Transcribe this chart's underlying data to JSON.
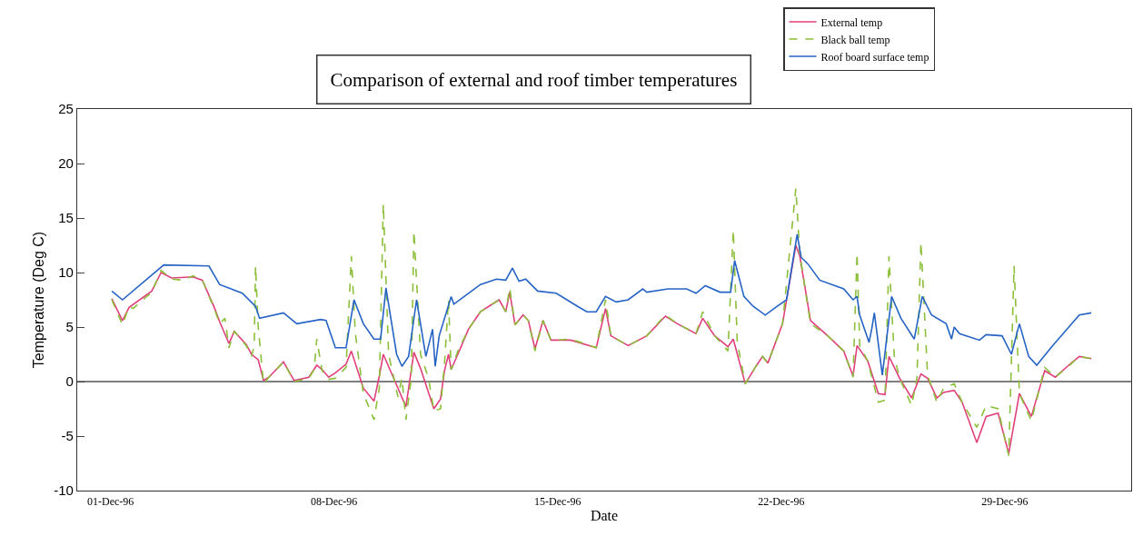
{
  "chart_data": {
    "type": "line",
    "title": "Comparison of external and roof timber temperatures",
    "xlabel": "Date",
    "ylabel": "Temperature (Deg C)",
    "xlim": [
      "1996-11-29T23:00",
      "1997-01-01T23:00"
    ],
    "xticks": [
      {
        "value": "1996-12-01T00:00",
        "label": "01-Dec-96"
      },
      {
        "value": "1996-12-08T00:00",
        "label": "08-Dec-96"
      },
      {
        "value": "1996-12-15T00:00",
        "label": "15-Dec-96"
      },
      {
        "value": "1996-12-22T00:00",
        "label": "22-Dec-96"
      },
      {
        "value": "1996-12-29T00:00",
        "label": "29-Dec-96"
      }
    ],
    "ylim": [
      -10,
      25
    ],
    "yticks": [
      -10,
      -5,
      0,
      5,
      10,
      15,
      20,
      25
    ],
    "grid": false,
    "legend": "top right",
    "marker": "none",
    "ref_lines": [
      {
        "axis": "y",
        "value": 0,
        "color": "#000000",
        "line_style": "solid"
      }
    ],
    "series": [
      {
        "name": "External temp",
        "color": "#e0407a",
        "line_style": "solid",
        "x": [
          "1996-12-01T01:00",
          "1996-12-01T09:00",
          "1996-12-01T14:00",
          "1996-12-02T07:00",
          "1996-12-02T14:00",
          "1996-12-02T22:00",
          "1996-12-03T14:00",
          "1996-12-03T21:00",
          "1996-12-04T06:00",
          "1996-12-04T10:00",
          "1996-12-04T17:00",
          "1996-12-04T21:00",
          "1996-12-05T06:00",
          "1996-12-05T10:00",
          "1996-12-05T15:00",
          "1996-12-05T19:00",
          "1996-12-05T23:00",
          "1996-12-06T10:00",
          "1996-12-06T18:00",
          "1996-12-07T05:00",
          "1996-12-07T11:00",
          "1996-12-07T15:00",
          "1996-12-07T20:00",
          "1996-12-08T01:00",
          "1996-12-08T09:00",
          "1996-12-08T13:00",
          "1996-12-08T22:00",
          "1996-12-09T06:00",
          "1996-12-09T10:00",
          "1996-12-09T13:00",
          "1996-12-10T00:00",
          "1996-12-10T06:00",
          "1996-12-10T12:00",
          "1996-12-10T17:00",
          "1996-12-11T03:00",
          "1996-12-11T08:00",
          "1996-12-11T11:00",
          "1996-12-11T14:00",
          "1996-12-11T16:00",
          "1996-12-11T21:00",
          "1996-12-12T05:00",
          "1996-12-12T14:00",
          "1996-12-13T04:00",
          "1996-12-13T09:00",
          "1996-12-13T12:00",
          "1996-12-13T16:00",
          "1996-12-13T22:00",
          "1996-12-14T02:00",
          "1996-12-14T07:00",
          "1996-12-14T13:00",
          "1996-12-14T19:00",
          "1996-12-15T10:00",
          "1996-12-16T05:00",
          "1996-12-16T12:00",
          "1996-12-16T16:00",
          "1996-12-17T05:00",
          "1996-12-17T19:00",
          "1996-12-18T09:00",
          "1996-12-18T18:00",
          "1996-12-19T08:00",
          "1996-12-19T13:00",
          "1996-12-19T22:00",
          "1996-12-20T08:00",
          "1996-12-20T12:00",
          "1996-12-20T21:00",
          "1996-12-21T05:00",
          "1996-12-21T10:00",
          "1996-12-21T14:00",
          "1996-12-22T01:00",
          "1996-12-22T11:00",
          "1996-12-22T14:00",
          "1996-12-22T22:00",
          "1996-12-23T11:00",
          "1996-12-23T23:00",
          "1996-12-24T06:00",
          "1996-12-24T09:00",
          "1996-12-24T17:00",
          "1996-12-25T01:00",
          "1996-12-25T06:00",
          "1996-12-25T09:00",
          "1996-12-25T17:00",
          "1996-12-26T02:00",
          "1996-12-26T09:00",
          "1996-12-26T14:00",
          "1996-12-26T21:00",
          "1996-12-27T02:00",
          "1996-12-27T10:00",
          "1996-12-27T16:00",
          "1996-12-28T03:00",
          "1996-12-28T10:00",
          "1996-12-28T19:00",
          "1996-12-29T03:00",
          "1996-12-29T11:00",
          "1996-12-29T20:00",
          "1996-12-30T06:00",
          "1996-12-30T14:00",
          "1996-12-31T00:00",
          "1996-12-31T08:00",
          "1996-12-31T17:00"
        ],
        "values": [
          7.6,
          5.6,
          6.8,
          8.3,
          10.0,
          9.5,
          9.6,
          9.3,
          6.8,
          5.5,
          3.5,
          4.6,
          3.4,
          2.5,
          2.0,
          0.1,
          0.4,
          1.8,
          0.1,
          0.4,
          1.5,
          1.1,
          0.4,
          0.8,
          1.6,
          2.8,
          -0.6,
          -1.8,
          0.5,
          2.5,
          -0.6,
          -2.3,
          2.7,
          1.2,
          -2.5,
          -1.6,
          1.0,
          2.5,
          1.1,
          2.5,
          4.8,
          6.4,
          7.5,
          6.4,
          8.2,
          5.2,
          6.1,
          5.6,
          3.0,
          5.6,
          3.8,
          3.8,
          3.1,
          6.7,
          4.2,
          3.3,
          4.2,
          6.0,
          5.3,
          4.4,
          5.8,
          4.2,
          3.2,
          3.9,
          -0.2,
          1.4,
          2.3,
          1.7,
          5.3,
          12.5,
          11.5,
          5.6,
          4.2,
          2.8,
          0.5,
          3.3,
          1.9,
          -1.1,
          -1.2,
          2.3,
          0.3,
          -1.5,
          0.7,
          0.3,
          -1.5,
          -1.0,
          -0.8,
          -1.9,
          -5.6,
          -3.2,
          -2.9,
          -6.6,
          -1.1,
          -3.2,
          1.0,
          0.4,
          1.5,
          2.3,
          2.1
        ]
      },
      {
        "name": "Black ball temp",
        "color": "#8cbf3a",
        "line_style": "dashed",
        "x": [
          "1996-12-01T01:00",
          "1996-12-01T09:00",
          "1996-12-01T14:00",
          "1996-12-01T17:00",
          "1996-12-02T07:00",
          "1996-12-02T14:00",
          "1996-12-02T22:00",
          "1996-12-03T07:00",
          "1996-12-03T14:00",
          "1996-12-03T21:00",
          "1996-12-04T06:00",
          "1996-12-04T10:00",
          "1996-12-04T14:00",
          "1996-12-04T17:00",
          "1996-12-04T21:00",
          "1996-12-05T06:00",
          "1996-12-05T10:00",
          "1996-12-05T12:00",
          "1996-12-05T13:00",
          "1996-12-05T15:00",
          "1996-12-05T19:00",
          "1996-12-05T23:00",
          "1996-12-06T10:00",
          "1996-12-06T18:00",
          "1996-12-07T05:00",
          "1996-12-07T09:00",
          "1996-12-07T11:00",
          "1996-12-07T15:00",
          "1996-12-07T20:00",
          "1996-12-08T01:00",
          "1996-12-08T09:00",
          "1996-12-08T13:00",
          "1996-12-08T16:00",
          "1996-12-08T22:00",
          "1996-12-09T06:00",
          "1996-12-09T10:00",
          "1996-12-09T13:00",
          "1996-12-09T17:00",
          "1996-12-10T00:00",
          "1996-12-10T03:00",
          "1996-12-10T06:00",
          "1996-12-10T10:00",
          "1996-12-10T12:00",
          "1996-12-10T17:00",
          "1996-12-10T23:00",
          "1996-12-11T03:00",
          "1996-12-11T08:00",
          "1996-12-11T11:00",
          "1996-12-11T14:00",
          "1996-12-11T16:00",
          "1996-12-11T21:00",
          "1996-12-12T05:00",
          "1996-12-12T14:00",
          "1996-12-13T04:00",
          "1996-12-13T09:00",
          "1996-12-13T12:00",
          "1996-12-13T16:00",
          "1996-12-13T22:00",
          "1996-12-14T02:00",
          "1996-12-14T07:00",
          "1996-12-14T13:00",
          "1996-12-14T19:00",
          "1996-12-15T10:00",
          "1996-12-16T05:00",
          "1996-12-16T12:00",
          "1996-12-16T16:00",
          "1996-12-17T05:00",
          "1996-12-17T19:00",
          "1996-12-18T09:00",
          "1996-12-18T18:00",
          "1996-12-19T08:00",
          "1996-12-19T13:00",
          "1996-12-19T22:00",
          "1996-12-20T08:00",
          "1996-12-20T12:00",
          "1996-12-20T15:00",
          "1996-12-20T21:00",
          "1996-12-21T05:00",
          "1996-12-21T10:00",
          "1996-12-21T14:00",
          "1996-12-22T01:00",
          "1996-12-22T11:00",
          "1996-12-22T14:00",
          "1996-12-22T22:00",
          "1996-12-23T11:00",
          "1996-12-23T23:00",
          "1996-12-24T06:00",
          "1996-12-24T09:00",
          "1996-12-24T11:00",
          "1996-12-24T17:00",
          "1996-12-25T01:00",
          "1996-12-25T06:00",
          "1996-12-25T09:00",
          "1996-12-25T13:00",
          "1996-12-25T17:00",
          "1996-12-26T02:00",
          "1996-12-26T06:00",
          "1996-12-26T09:00",
          "1996-12-26T14:00",
          "1996-12-26T21:00",
          "1996-12-27T02:00",
          "1996-12-27T10:00",
          "1996-12-27T16:00",
          "1996-12-28T03:00",
          "1996-12-28T10:00",
          "1996-12-28T19:00",
          "1996-12-29T03:00",
          "1996-12-29T07:00",
          "1996-12-29T11:00",
          "1996-12-29T20:00",
          "1996-12-30T06:00",
          "1996-12-30T14:00",
          "1996-12-31T00:00",
          "1996-12-31T08:00",
          "1996-12-31T17:00"
        ],
        "values": [
          7.5,
          5.2,
          6.9,
          6.7,
          8.2,
          10.2,
          9.4,
          9.3,
          9.7,
          9.3,
          6.7,
          5.3,
          5.8,
          3.1,
          4.6,
          3.3,
          2.3,
          3.3,
          10.6,
          5.0,
          -0.2,
          0.4,
          1.8,
          0,
          0.3,
          1.1,
          3.9,
          1.0,
          0.2,
          0.3,
          1.3,
          11.5,
          4.4,
          -1.1,
          -3.5,
          -0.6,
          16.3,
          2.5,
          -1.4,
          0.3,
          -3.5,
          0.3,
          13.8,
          2.5,
          0.3,
          -2.7,
          -2.5,
          1.7,
          7.5,
          1.1,
          2.8,
          4.8,
          6.4,
          7.5,
          6.4,
          8.6,
          5.2,
          6.1,
          5.6,
          2.8,
          5.6,
          3.8,
          3.9,
          3.1,
          7.5,
          4.2,
          3.3,
          4.2,
          6.1,
          5.3,
          4.4,
          6.4,
          4.2,
          2.8,
          13.9,
          3.6,
          -0.2,
          1.4,
          2.3,
          1.7,
          5.3,
          17.7,
          11.7,
          5.3,
          4.2,
          2.8,
          0.4,
          11.8,
          3.3,
          1.9,
          -1.9,
          -1.7,
          11.5,
          2.3,
          0.3,
          -2.2,
          0.3,
          12.8,
          0.6,
          -1.9,
          -0.6,
          -0.2,
          -1.9,
          -4.2,
          -2.2,
          -2.5,
          -6.8,
          10.6,
          -1.1,
          -3.6,
          1.3,
          0.4,
          1.4,
          2.3,
          2.1
        ]
      },
      {
        "name": "Roof board surface temp",
        "color": "#2563c4",
        "line_style": "solid",
        "x": [
          "1996-12-01T01:00",
          "1996-12-01T09:00",
          "1996-12-02T16:00",
          "1996-12-04T02:00",
          "1996-12-04T10:00",
          "1996-12-05T03:00",
          "1996-12-05T13:00",
          "1996-12-05T16:00",
          "1996-12-06T10:00",
          "1996-12-06T20:00",
          "1996-12-07T14:00",
          "1996-12-07T18:00",
          "1996-12-08T01:00",
          "1996-12-08T09:00",
          "1996-12-08T15:00",
          "1996-12-08T22:00",
          "1996-12-09T06:00",
          "1996-12-09T11:00",
          "1996-12-09T15:00",
          "1996-12-09T23:00",
          "1996-12-10T03:00",
          "1996-12-10T08:00",
          "1996-12-10T14:00",
          "1996-12-10T21:00",
          "1996-12-11T02:00",
          "1996-12-11T04:00",
          "1996-12-11T07:00",
          "1996-12-11T16:00",
          "1996-12-11T18:00",
          "1996-12-12T14:00",
          "1996-12-13T02:00",
          "1996-12-13T09:00",
          "1996-12-13T14:00",
          "1996-12-13T19:00",
          "1996-12-14T00:00",
          "1996-12-14T09:00",
          "1996-12-14T23:00",
          "1996-12-15T15:00",
          "1996-12-15T22:00",
          "1996-12-16T05:00",
          "1996-12-16T12:00",
          "1996-12-16T20:00",
          "1996-12-17T05:00",
          "1996-12-17T16:00",
          "1996-12-17T19:00",
          "1996-12-18T11:00",
          "1996-12-19T01:00",
          "1996-12-19T08:00",
          "1996-12-19T15:00",
          "1996-12-20T02:00",
          "1996-12-20T10:00",
          "1996-12-20T13:00",
          "1996-12-20T20:00",
          "1996-12-21T03:00",
          "1996-12-21T12:00",
          "1996-12-21T21:00",
          "1996-12-22T04:00",
          "1996-12-22T12:00",
          "1996-12-22T15:00",
          "1996-12-22T20:00",
          "1996-12-23T05:00",
          "1996-12-23T23:00",
          "1996-12-24T06:00",
          "1996-12-24T09:00",
          "1996-12-24T11:00",
          "1996-12-24T18:00",
          "1996-12-24T20:00",
          "1996-12-24T22:00",
          "1996-12-25T04:00",
          "1996-12-25T11:00",
          "1996-12-25T18:00",
          "1996-12-26T04:00",
          "1996-12-26T10:00",
          "1996-12-26T17:00",
          "1996-12-27T04:00",
          "1996-12-27T08:00",
          "1996-12-27T10:00",
          "1996-12-27T14:00",
          "1996-12-28T05:00",
          "1996-12-28T10:00",
          "1996-12-28T22:00",
          "1996-12-29T05:00",
          "1996-12-29T11:00",
          "1996-12-29T18:00",
          "1996-12-30T00:00",
          "1996-12-30T12:00",
          "1996-12-31T08:00",
          "1996-12-31T17:00"
        ],
        "values": [
          8.3,
          7.5,
          10.7,
          10.6,
          8.9,
          8.1,
          6.9,
          5.8,
          6.3,
          5.3,
          5.7,
          5.6,
          3.1,
          3.1,
          7.5,
          5.3,
          3.9,
          3.9,
          8.6,
          2.5,
          1.4,
          2.3,
          7.5,
          2.3,
          4.8,
          1.4,
          4.2,
          7.8,
          7.1,
          8.9,
          9.4,
          9.3,
          10.4,
          9.2,
          9.4,
          8.3,
          8.1,
          6.9,
          6.4,
          6.4,
          7.8,
          7.3,
          7.5,
          8.5,
          8.2,
          8.5,
          8.5,
          8.1,
          8.8,
          8.2,
          8.2,
          11.1,
          7.8,
          6.9,
          6.1,
          6.9,
          7.5,
          13.5,
          11.4,
          10.8,
          9.3,
          8.5,
          7.5,
          7.8,
          6.1,
          3.6,
          4.8,
          6.3,
          0.6,
          7.8,
          5.8,
          3.9,
          7.8,
          6.1,
          5.3,
          3.9,
          5.0,
          4.4,
          3.8,
          4.3,
          4.2,
          2.5,
          5.3,
          2.3,
          1.5,
          3.3,
          6.1,
          6.3
        ]
      }
    ]
  }
}
